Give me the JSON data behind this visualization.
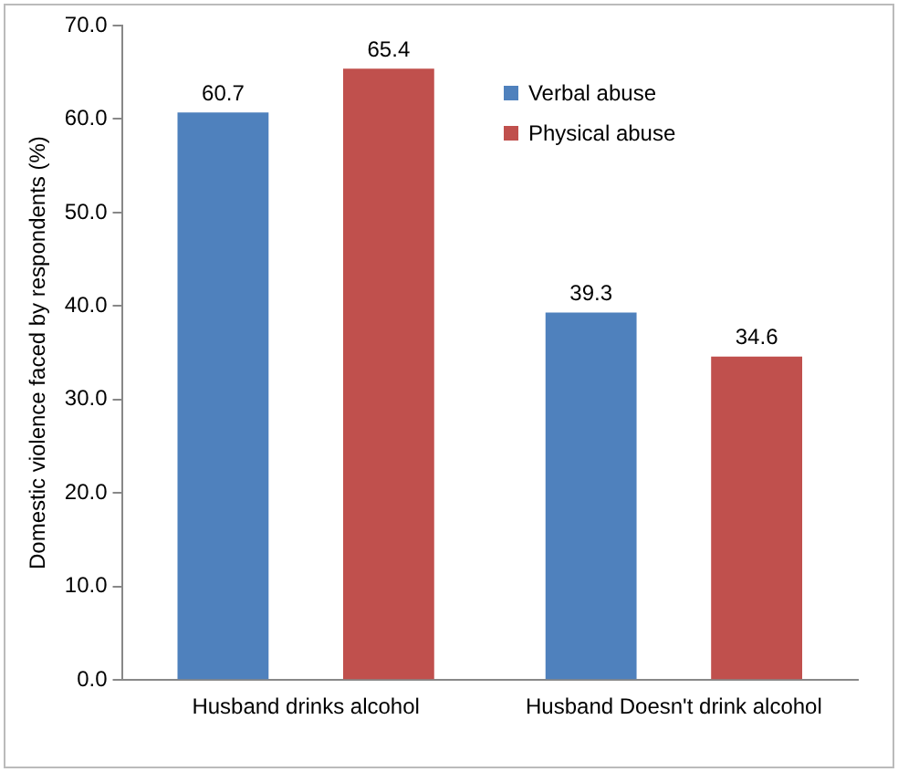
{
  "chart_data": {
    "type": "bar",
    "ylabel": "Domestic violence faced by respondents (%)",
    "categories": [
      "Husband drinks alcohol",
      "Husband Doesn't drink alcohol"
    ],
    "series": [
      {
        "name": "Verbal abuse",
        "color": "#4f81bd",
        "values": [
          60.7,
          39.3
        ]
      },
      {
        "name": "Physical abuse",
        "color": "#c0504d",
        "values": [
          65.4,
          34.6
        ]
      }
    ],
    "ylim": [
      0,
      70
    ],
    "yticks": [
      {
        "value": 0,
        "label": "0.0"
      },
      {
        "value": 10,
        "label": "10.0"
      },
      {
        "value": 20,
        "label": "20.0"
      },
      {
        "value": 30,
        "label": "30.0"
      },
      {
        "value": 40,
        "label": "40.0"
      },
      {
        "value": 50,
        "label": "50.0"
      },
      {
        "value": 60,
        "label": "60.0"
      },
      {
        "value": 70,
        "label": "70.0"
      }
    ],
    "grid": false,
    "legend": "top right",
    "data_labels": true
  }
}
